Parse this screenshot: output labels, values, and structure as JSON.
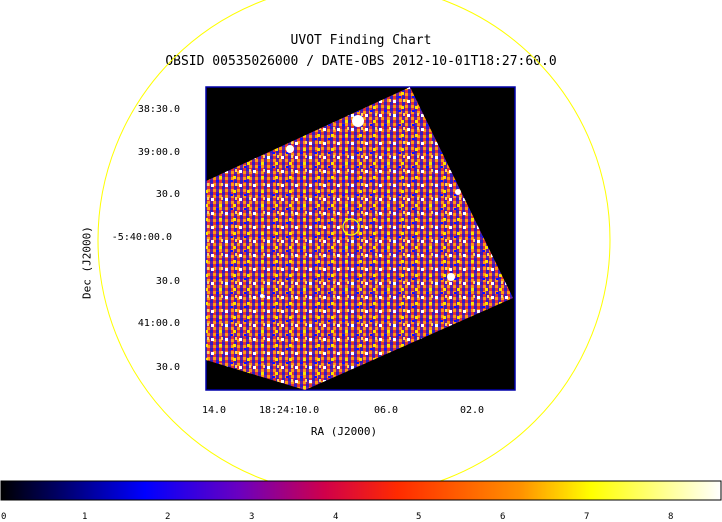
{
  "title": "UVOT Finding Chart",
  "subtitle": "OBSID 00535026000 / DATE-OBS 2012-10-01T18:27:60.0",
  "axes": {
    "xlabel": "RA (J2000)",
    "ylabel": "Dec (J2000)",
    "ra_ticks": [
      "14.0",
      "18:24:10.0",
      "06.0",
      "02.0"
    ],
    "dec_ticks": [
      "38:30.0",
      "39:00.0",
      "30.0",
      "-5:40:00.0",
      "30.0",
      "41:00.0",
      "30.0"
    ]
  },
  "colorbar": {
    "ticks": [
      "0",
      "1",
      "2",
      "3",
      "4",
      "5",
      "6",
      "7",
      "8"
    ],
    "colors": [
      "#000000",
      "#0000ff",
      "#ff0000",
      "#ffff00",
      "#ffffff"
    ]
  },
  "colors": {
    "field_circle": "#ffff00",
    "frame": "#0000aa",
    "image_bg": "#000000",
    "target_marker": "#ffff00"
  }
}
